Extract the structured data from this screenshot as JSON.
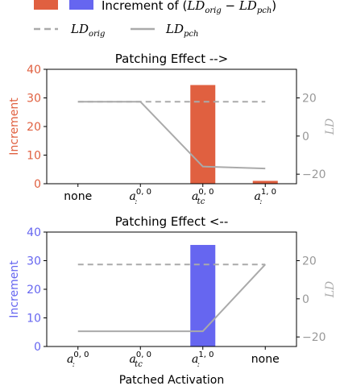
{
  "legend": {
    "increment_prefix": "Increment of (",
    "increment_ld1": "LD",
    "increment_sub1": "orig",
    "increment_minus": " − ",
    "increment_ld2": "LD",
    "increment_sub2": "pch",
    "increment_suffix": ")",
    "orig_ld": "LD",
    "orig_sub": "orig",
    "pch_ld": "LD",
    "pch_sub": "pch"
  },
  "chart_data": [
    {
      "type": "bar",
      "title": "Patching Effect -->",
      "ylabel": "Increment",
      "y2label": "LD",
      "xlabel": "",
      "categories": [
        "none",
        "a:0,0",
        "atc0,0",
        "a:1,0"
      ],
      "tick_labels": [
        {
          "main": "none",
          "sub": "",
          "sup": ""
        },
        {
          "main": "a",
          "sub": ":",
          "sup": "0, 0"
        },
        {
          "main": "a",
          "sub": "tc",
          "sup": "0, 0"
        },
        {
          "main": "a",
          "sub": ":",
          "sup": "1, 0"
        }
      ],
      "bar_color": "#e06040",
      "bar_values": [
        0,
        0,
        34.5,
        1
      ],
      "ylim": [
        0,
        40
      ],
      "yticks": [
        "0",
        "10",
        "20",
        "30",
        "40"
      ],
      "y2lim": [
        -25,
        35
      ],
      "y2ticks": [
        "−20",
        "0",
        "20"
      ],
      "ld_orig": 18,
      "ld_pch": [
        18,
        18,
        -16,
        -17
      ],
      "y_label_color": "#e06040"
    },
    {
      "type": "bar",
      "title": "Patching Effect <--",
      "ylabel": "Increment",
      "y2label": "LD",
      "xlabel": "Patched Activation",
      "categories": [
        "a:0,0",
        "atc0,0",
        "a:1,0",
        "none"
      ],
      "tick_labels": [
        {
          "main": "a",
          "sub": ":",
          "sup": "0, 0"
        },
        {
          "main": "a",
          "sub": "tc",
          "sup": "0, 0"
        },
        {
          "main": "a",
          "sub": ":",
          "sup": "1, 0"
        },
        {
          "main": "none",
          "sub": "",
          "sup": ""
        }
      ],
      "bar_color": "#6666f0",
      "bar_values": [
        0,
        0,
        35.5,
        0
      ],
      "ylim": [
        0,
        40
      ],
      "yticks": [
        "0",
        "10",
        "20",
        "30",
        "40"
      ],
      "y2lim": [
        -25,
        35
      ],
      "y2ticks": [
        "−20",
        "0",
        "20"
      ],
      "ld_orig": 18,
      "ld_pch": [
        -17,
        -17,
        -17,
        18
      ],
      "y_label_color": "#6666f0"
    }
  ]
}
